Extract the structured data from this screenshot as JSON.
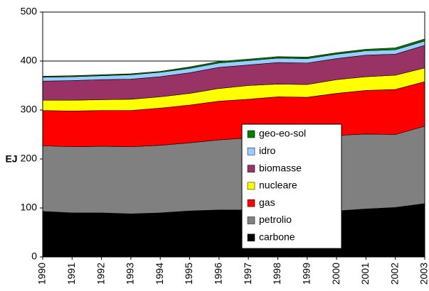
{
  "chart_data": {
    "type": "stacked-area",
    "y_label": "EJ",
    "x": [
      1990,
      1991,
      1992,
      1993,
      1994,
      1995,
      1996,
      1997,
      1998,
      1999,
      2000,
      2001,
      2002,
      2003
    ],
    "xlim": [
      1990,
      2003
    ],
    "xticks": [
      1990,
      1991,
      1992,
      1993,
      1994,
      1995,
      1996,
      1997,
      1998,
      1999,
      2000,
      2001,
      2002,
      2003
    ],
    "ylim": [
      0,
      500
    ],
    "yticks": [
      0,
      100,
      200,
      300,
      400,
      500
    ],
    "grid": true,
    "legend": "center",
    "series": [
      {
        "name": "carbone",
        "color": "#000000",
        "values": [
          93,
          90,
          90,
          88,
          90,
          94,
          96,
          96,
          93,
          92,
          94,
          98,
          101,
          109
        ]
      },
      {
        "name": "petrolio",
        "color": "#808080",
        "values": [
          134,
          135,
          136,
          137,
          138,
          139,
          143,
          147,
          152,
          152,
          154,
          153,
          149,
          158
        ]
      },
      {
        "name": "gas",
        "color": "#ff0000",
        "values": [
          72,
          73,
          73,
          74,
          76,
          77,
          79,
          79,
          82,
          82,
          86,
          89,
          92,
          91
        ]
      },
      {
        "name": "nucleare",
        "color": "#ffff00",
        "values": [
          21,
          22,
          22,
          23,
          23,
          24,
          26,
          28,
          26,
          26,
          28,
          28,
          29,
          28
        ]
      },
      {
        "name": "biomasse",
        "color": "#993366",
        "values": [
          39,
          40,
          41,
          41,
          41,
          42,
          43,
          42,
          44,
          44,
          43,
          44,
          43,
          46
        ]
      },
      {
        "name": "idro",
        "color": "#99ccff",
        "values": [
          8,
          8,
          8,
          9,
          9,
          9,
          9,
          9,
          9,
          9,
          9,
          9,
          9,
          9
        ]
      },
      {
        "name": "geo-eo-sol",
        "color": "#008000",
        "values": [
          2,
          2,
          2,
          2,
          2,
          3,
          3,
          3,
          3,
          3,
          3,
          3,
          4,
          4
        ]
      }
    ]
  }
}
